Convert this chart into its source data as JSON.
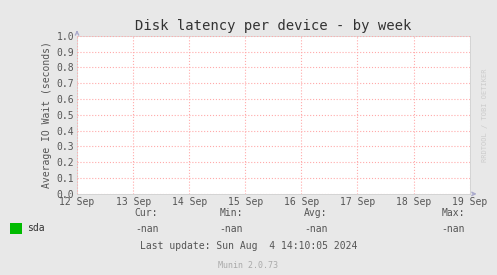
{
  "title": "Disk latency per device - by week",
  "ylabel": "Average IO Wait (seconds)",
  "background_color": "#e8e8e8",
  "plot_bg_color": "#ffffff",
  "grid_color": "#ffaaaa",
  "border_color": "#bbbbbb",
  "arrow_color": "#aaaacc",
  "ylim": [
    0.0,
    1.0
  ],
  "yticks": [
    0.0,
    0.1,
    0.2,
    0.3,
    0.4,
    0.5,
    0.6,
    0.7,
    0.8,
    0.9,
    1.0
  ],
  "xtick_labels": [
    "12 Sep",
    "13 Sep",
    "14 Sep",
    "15 Sep",
    "16 Sep",
    "17 Sep",
    "18 Sep",
    "19 Sep"
  ],
  "legend_label": "sda",
  "legend_color": "#00bb00",
  "cur_label": "Cur:",
  "cur_value": "-nan",
  "min_label": "Min:",
  "min_value": "-nan",
  "avg_label": "Avg:",
  "avg_value": "-nan",
  "max_label": "Max:",
  "max_value": "-nan",
  "last_update": "Last update: Sun Aug  4 14:10:05 2024",
  "watermark": "RRDTOOL / TOBI OETIKER",
  "munin_version": "Munin 2.0.73",
  "title_fontsize": 10,
  "axis_label_fontsize": 7,
  "tick_fontsize": 7,
  "footer_fontsize": 7,
  "watermark_fontsize": 5,
  "munin_fontsize": 6
}
